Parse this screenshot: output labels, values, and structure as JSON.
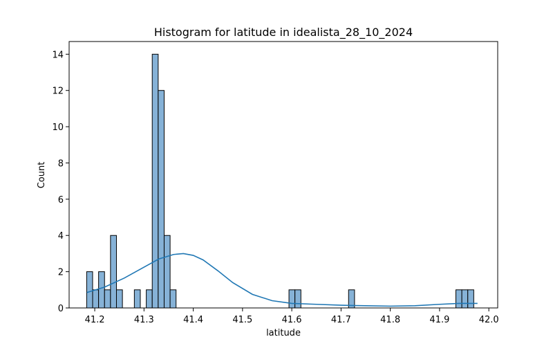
{
  "chart_data": {
    "type": "bar",
    "title": "Histogram for latitude in idealista_28_10_2024",
    "xlabel": "latitude",
    "ylabel": "Count",
    "xlim": [
      41.148,
      42.018
    ],
    "ylim": [
      0,
      14.7
    ],
    "xticks": [
      41.2,
      41.3,
      41.4,
      41.5,
      41.6,
      41.7,
      41.8,
      41.9,
      42.0
    ],
    "xtick_labels": [
      "41.2",
      "41.3",
      "41.4",
      "41.5",
      "41.6",
      "41.7",
      "41.8",
      "41.9",
      "42.0"
    ],
    "yticks": [
      0,
      2,
      4,
      6,
      8,
      10,
      12,
      14
    ],
    "ytick_labels": [
      "0",
      "2",
      "4",
      "6",
      "8",
      "10",
      "12",
      "14"
    ],
    "grid": false,
    "bin_width": 0.0121,
    "bins": [
      {
        "x0": 41.1836,
        "count": 2
      },
      {
        "x0": 41.1957,
        "count": 1
      },
      {
        "x0": 41.2078,
        "count": 2
      },
      {
        "x0": 41.2199,
        "count": 1
      },
      {
        "x0": 41.232,
        "count": 4
      },
      {
        "x0": 41.2441,
        "count": 1
      },
      {
        "x0": 41.2562,
        "count": 0
      },
      {
        "x0": 41.2683,
        "count": 0
      },
      {
        "x0": 41.2804,
        "count": 1
      },
      {
        "x0": 41.2925,
        "count": 0
      },
      {
        "x0": 41.3046,
        "count": 1
      },
      {
        "x0": 41.3167,
        "count": 14
      },
      {
        "x0": 41.3288,
        "count": 12
      },
      {
        "x0": 41.3409,
        "count": 4
      },
      {
        "x0": 41.353,
        "count": 1
      }
    ],
    "bins_right": [
      {
        "x0": 41.5943,
        "count": 1
      },
      {
        "x0": 41.6064,
        "count": 1
      },
      {
        "x0": 41.7153,
        "count": 1
      },
      {
        "x0": 41.9331,
        "count": 1
      },
      {
        "x0": 41.9452,
        "count": 1
      },
      {
        "x0": 41.9573,
        "count": 1
      }
    ],
    "kde": {
      "name": "kde",
      "x": [
        41.184,
        41.22,
        41.26,
        41.3,
        41.33,
        41.36,
        41.38,
        41.4,
        41.42,
        41.45,
        41.48,
        41.52,
        41.56,
        41.6,
        41.65,
        41.7,
        41.75,
        41.8,
        41.85,
        41.9,
        41.94,
        41.977
      ],
      "y": [
        0.85,
        1.15,
        1.65,
        2.25,
        2.7,
        2.95,
        3.0,
        2.9,
        2.65,
        2.05,
        1.4,
        0.75,
        0.4,
        0.25,
        0.2,
        0.15,
        0.12,
        0.1,
        0.12,
        0.2,
        0.25,
        0.25
      ]
    },
    "colors": {
      "bar_fill": "#86b2d7",
      "bar_edge": "#000000",
      "kde_line": "#1f77b4"
    }
  }
}
